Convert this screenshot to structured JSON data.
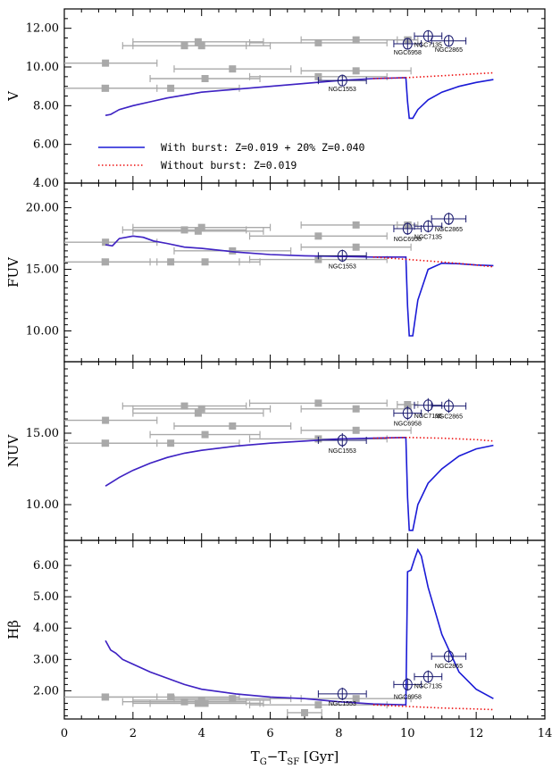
{
  "figure": {
    "xlabel_main": "T",
    "xlabel_sub1": "G",
    "xlabel_mid": "−T",
    "xlabel_sub2": "SF",
    "xlabel_unit": " [Gyr]"
  },
  "colors": {
    "burst": "#1a1ad6",
    "burst_overlay": "#7a2aa0",
    "noburst": "#ee1111",
    "gray_points": "#a9a9a9",
    "target_points": "#1a1a6e"
  },
  "chart_data": [
    {
      "type": "scatter",
      "panel": "V",
      "ylabel": "V",
      "xlim": [
        0,
        14
      ],
      "ylim": [
        4,
        13
      ],
      "xticks": [
        "0",
        "2",
        "4",
        "6",
        "8",
        "10",
        "12",
        "14"
      ],
      "yticks": [
        "4.00",
        "6.00",
        "8.00",
        "10.00",
        "12.00"
      ],
      "ytick_values": [
        4,
        6,
        8,
        10,
        12
      ],
      "legend": {
        "placement": "lower-left",
        "entries": [
          "With burst: Z=0.019 + 20% Z=0.040",
          "Without burst: Z=0.019"
        ]
      },
      "series": [
        {
          "name": "With burst: Z=0.019 + 20% Z=0.040",
          "style": "solid",
          "x": [
            1.2,
            1.35,
            1.6,
            2.0,
            2.5,
            3.0,
            3.5,
            4.0,
            5.0,
            6.0,
            7.0,
            8.0,
            9.0,
            9.95,
            10.0,
            10.05,
            10.15,
            10.3,
            10.6,
            11.0,
            11.5,
            12.0,
            12.5
          ],
          "y": [
            7.5,
            7.55,
            7.8,
            8.0,
            8.2,
            8.4,
            8.55,
            8.7,
            8.85,
            9.0,
            9.15,
            9.3,
            9.4,
            9.45,
            8.2,
            7.35,
            7.35,
            7.8,
            8.3,
            8.7,
            9.0,
            9.2,
            9.35
          ]
        },
        {
          "name": "Without burst: Z=0.019",
          "style": "dotted",
          "x": [
            9.0,
            10.0,
            11.0,
            12.0,
            12.5
          ],
          "y": [
            9.4,
            9.45,
            9.55,
            9.65,
            9.7
          ]
        }
      ],
      "gray_points": [
        {
          "x": 1.2,
          "y": 10.2,
          "xerr": 1.5
        },
        {
          "x": 1.2,
          "y": 8.9,
          "xerr": 1.5
        },
        {
          "x": 3.1,
          "y": 8.9,
          "xerr": 2.0
        },
        {
          "x": 3.5,
          "y": 11.1,
          "xerr": 1.8
        },
        {
          "x": 3.9,
          "y": 11.3,
          "xerr": 1.9
        },
        {
          "x": 4.0,
          "y": 11.1,
          "xerr": 2.0
        },
        {
          "x": 4.1,
          "y": 9.4,
          "xerr": 1.6
        },
        {
          "x": 4.9,
          "y": 9.9,
          "xerr": 1.7
        },
        {
          "x": 7.4,
          "y": 11.25,
          "xerr": 2.0
        },
        {
          "x": 7.4,
          "y": 9.5,
          "xerr": 2.0
        },
        {
          "x": 8.5,
          "y": 11.4,
          "xerr": 1.6
        },
        {
          "x": 8.5,
          "y": 9.8,
          "xerr": 1.6
        },
        {
          "x": 10.0,
          "y": 11.4,
          "xerr": 0.3
        }
      ],
      "targets": [
        {
          "name": "NGC1553",
          "x": 8.1,
          "y": 9.3,
          "xerr": 0.7,
          "yerr": 0.3,
          "label_dy": 12
        },
        {
          "name": "NGC6958",
          "x": 10.0,
          "y": 11.2,
          "xerr": 0.4,
          "yerr": 0.3,
          "label_dy": 12
        },
        {
          "name": "NGC7135",
          "x": 10.6,
          "y": 11.6,
          "xerr": 0.4,
          "yerr": 0.3,
          "label_dy": 12
        },
        {
          "name": "NGC2865",
          "x": 11.2,
          "y": 11.35,
          "xerr": 0.5,
          "yerr": 0.3,
          "label_dy": 12
        }
      ]
    },
    {
      "type": "scatter",
      "panel": "FUV",
      "ylabel": "FUV",
      "xlim": [
        0,
        14
      ],
      "ylim": [
        7.5,
        22
      ],
      "xticks": [
        "0",
        "2",
        "4",
        "6",
        "8",
        "10",
        "12",
        "14"
      ],
      "yticks": [
        "10.00",
        "15.00",
        "20.00"
      ],
      "ytick_values": [
        10,
        15,
        20
      ],
      "series": [
        {
          "name": "With burst: Z=0.019 + 20% Z=0.040",
          "style": "solid",
          "x": [
            1.2,
            1.4,
            1.6,
            2.0,
            2.3,
            2.6,
            3.0,
            3.5,
            4.0,
            5.0,
            6.0,
            7.0,
            8.0,
            9.0,
            9.95,
            10.0,
            10.05,
            10.15,
            10.3,
            10.6,
            11.0,
            11.5,
            12.0,
            12.5
          ],
          "y": [
            17.0,
            16.9,
            17.5,
            17.7,
            17.6,
            17.3,
            17.1,
            16.8,
            16.7,
            16.4,
            16.2,
            16.1,
            16.05,
            16.0,
            16.0,
            12.0,
            9.6,
            9.6,
            12.5,
            15.0,
            15.5,
            15.45,
            15.35,
            15.3
          ]
        },
        {
          "name": "Without burst: Z=0.019",
          "style": "dotted",
          "x": [
            9.0,
            10.0,
            11.0,
            12.0,
            12.5
          ],
          "y": [
            16.0,
            15.8,
            15.6,
            15.35,
            15.2
          ]
        }
      ],
      "gray_points": [
        {
          "x": 1.2,
          "y": 17.2,
          "xerr": 1.5
        },
        {
          "x": 1.2,
          "y": 15.6,
          "xerr": 1.5
        },
        {
          "x": 3.1,
          "y": 15.6,
          "xerr": 2.0
        },
        {
          "x": 3.5,
          "y": 18.2,
          "xerr": 1.8
        },
        {
          "x": 3.9,
          "y": 18.1,
          "xerr": 1.9
        },
        {
          "x": 4.0,
          "y": 18.4,
          "xerr": 2.0
        },
        {
          "x": 4.1,
          "y": 15.6,
          "xerr": 1.6
        },
        {
          "x": 4.9,
          "y": 16.5,
          "xerr": 1.7
        },
        {
          "x": 7.4,
          "y": 17.7,
          "xerr": 2.0
        },
        {
          "x": 7.4,
          "y": 15.8,
          "xerr": 2.0
        },
        {
          "x": 8.5,
          "y": 18.6,
          "xerr": 1.6
        },
        {
          "x": 8.5,
          "y": 16.8,
          "xerr": 1.6
        },
        {
          "x": 10.0,
          "y": 18.6,
          "xerr": 0.3
        }
      ],
      "targets": [
        {
          "name": "NGC1553",
          "x": 8.1,
          "y": 16.1,
          "xerr": 0.7,
          "yerr": 0.5,
          "label_dy": 14
        },
        {
          "name": "NGC6958",
          "x": 10.0,
          "y": 18.3,
          "xerr": 0.4,
          "yerr": 0.5,
          "label_dy": 14
        },
        {
          "name": "NGC7135",
          "x": 10.6,
          "y": 18.5,
          "xerr": 0.4,
          "yerr": 0.5,
          "label_dy": 14
        },
        {
          "name": "NGC2865",
          "x": 11.2,
          "y": 19.1,
          "xerr": 0.5,
          "yerr": 0.5,
          "label_dy": 14
        }
      ]
    },
    {
      "type": "scatter",
      "panel": "NUV",
      "ylabel": "NUV",
      "xlim": [
        0,
        14
      ],
      "ylim": [
        7.5,
        20
      ],
      "xticks": [
        "0",
        "2",
        "4",
        "6",
        "8",
        "10",
        "12",
        "14"
      ],
      "yticks": [
        "10.00",
        "15.00"
      ],
      "ytick_values": [
        10,
        15
      ],
      "series": [
        {
          "name": "With burst: Z=0.019 + 20% Z=0.040",
          "style": "solid",
          "x": [
            1.2,
            1.6,
            2.0,
            2.5,
            3.0,
            3.5,
            4.0,
            5.0,
            6.0,
            7.0,
            8.0,
            9.0,
            9.95,
            10.0,
            10.05,
            10.15,
            10.3,
            10.6,
            11.0,
            11.5,
            12.0,
            12.5
          ],
          "y": [
            11.3,
            11.9,
            12.4,
            12.9,
            13.3,
            13.6,
            13.8,
            14.1,
            14.3,
            14.45,
            14.6,
            14.65,
            14.7,
            10.5,
            8.2,
            8.2,
            10.0,
            11.5,
            12.5,
            13.4,
            13.9,
            14.15
          ]
        },
        {
          "name": "Without burst: Z=0.019",
          "style": "dotted",
          "x": [
            9.0,
            10.0,
            11.0,
            12.0,
            12.5
          ],
          "y": [
            14.65,
            14.7,
            14.65,
            14.55,
            14.45
          ]
        }
      ],
      "gray_points": [
        {
          "x": 1.2,
          "y": 15.9,
          "xerr": 1.5
        },
        {
          "x": 1.2,
          "y": 14.3,
          "xerr": 1.5
        },
        {
          "x": 3.1,
          "y": 14.3,
          "xerr": 2.0
        },
        {
          "x": 3.5,
          "y": 16.9,
          "xerr": 1.8
        },
        {
          "x": 3.9,
          "y": 16.4,
          "xerr": 1.9
        },
        {
          "x": 4.0,
          "y": 16.7,
          "xerr": 2.0
        },
        {
          "x": 4.1,
          "y": 14.9,
          "xerr": 1.6
        },
        {
          "x": 4.9,
          "y": 15.5,
          "xerr": 1.7
        },
        {
          "x": 7.4,
          "y": 17.1,
          "xerr": 2.0
        },
        {
          "x": 7.4,
          "y": 14.6,
          "xerr": 2.0
        },
        {
          "x": 8.5,
          "y": 16.7,
          "xerr": 1.6
        },
        {
          "x": 8.5,
          "y": 15.2,
          "xerr": 1.6
        },
        {
          "x": 10.0,
          "y": 17.0,
          "xerr": 0.3
        }
      ],
      "targets": [
        {
          "name": "NGC1553",
          "x": 8.1,
          "y": 14.5,
          "xerr": 0.7,
          "yerr": 0.5,
          "label_dy": 14
        },
        {
          "name": "NGC6958",
          "x": 10.0,
          "y": 16.4,
          "xerr": 0.4,
          "yerr": 0.5,
          "label_dy": 14
        },
        {
          "name": "NGC7135",
          "x": 10.6,
          "y": 16.95,
          "xerr": 0.4,
          "yerr": 0.5,
          "label_dy": 14
        },
        {
          "name": "NGC2865",
          "x": 11.2,
          "y": 16.9,
          "xerr": 0.5,
          "yerr": 0.5,
          "label_dy": 14
        }
      ]
    },
    {
      "type": "scatter",
      "panel": "Hbeta",
      "ylabel": "Hβ",
      "xlim": [
        0,
        14
      ],
      "ylim": [
        1.1,
        6.8
      ],
      "xticks": [
        "0",
        "2",
        "4",
        "6",
        "8",
        "10",
        "12",
        "14"
      ],
      "yticks": [
        "2.00",
        "3.00",
        "4.00",
        "5.00",
        "6.00"
      ],
      "ytick_values": [
        2,
        3,
        4,
        5,
        6
      ],
      "series": [
        {
          "name": "With burst: Z=0.019 + 20% Z=0.040",
          "style": "solid",
          "x": [
            1.2,
            1.35,
            1.5,
            1.7,
            2.0,
            2.5,
            3.0,
            3.5,
            4.0,
            5.0,
            6.0,
            7.0,
            8.0,
            9.0,
            9.95,
            10.0,
            10.1,
            10.2,
            10.3,
            10.4,
            10.6,
            11.0,
            11.5,
            12.0,
            12.5
          ],
          "y": [
            3.6,
            3.3,
            3.2,
            3.0,
            2.85,
            2.6,
            2.4,
            2.2,
            2.05,
            1.9,
            1.8,
            1.75,
            1.65,
            1.58,
            1.55,
            5.8,
            5.85,
            6.2,
            6.5,
            6.3,
            5.3,
            3.8,
            2.6,
            2.05,
            1.75
          ]
        },
        {
          "name": "Without burst: Z=0.019",
          "style": "dotted",
          "x": [
            9.0,
            10.0,
            11.0,
            12.0,
            12.5
          ],
          "y": [
            1.55,
            1.5,
            1.45,
            1.42,
            1.4
          ]
        }
      ],
      "gray_points": [
        {
          "x": 1.2,
          "y": 1.8,
          "xerr": 1.5
        },
        {
          "x": 3.1,
          "y": 1.8,
          "xerr": 2.0
        },
        {
          "x": 3.5,
          "y": 1.65,
          "xerr": 1.8
        },
        {
          "x": 3.9,
          "y": 1.6,
          "xerr": 1.9
        },
        {
          "x": 4.0,
          "y": 1.7,
          "xerr": 2.0
        },
        {
          "x": 4.1,
          "y": 1.6,
          "xerr": 1.6
        },
        {
          "x": 4.9,
          "y": 1.75,
          "xerr": 1.7
        },
        {
          "x": 7.0,
          "y": 1.3,
          "xerr": 0.5
        },
        {
          "x": 7.4,
          "y": 1.55,
          "xerr": 2.0
        },
        {
          "x": 8.5,
          "y": 1.75,
          "xerr": 1.6
        }
      ],
      "targets": [
        {
          "name": "NGC1553",
          "x": 8.1,
          "y": 1.9,
          "xerr": 0.7,
          "yerr": 0.2,
          "label_dy": 13
        },
        {
          "name": "NGC6958",
          "x": 10.0,
          "y": 2.2,
          "xerr": 0.4,
          "yerr": 0.2,
          "label_dy": 16
        },
        {
          "name": "NGC7135",
          "x": 10.6,
          "y": 2.45,
          "xerr": 0.4,
          "yerr": 0.2,
          "label_dy": 13
        },
        {
          "name": "NGC2865",
          "x": 11.2,
          "y": 3.1,
          "xerr": 0.5,
          "yerr": 0.2,
          "label_dy": 13
        }
      ]
    }
  ]
}
